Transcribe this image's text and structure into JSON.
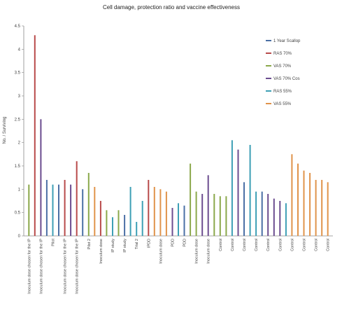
{
  "chart_data": {
    "type": "bar",
    "title": "Cell damage, protection ratio and vaccine effectiveness",
    "ylabel": "No. / Surviving",
    "ylim": [
      0,
      4.5
    ],
    "yticks": [
      "0",
      "0.5",
      "1",
      "1.5",
      "2",
      "2.5",
      "3",
      "3.5",
      "4",
      "4.5"
    ],
    "grid": false,
    "legend_position": "top-right",
    "series": [
      {
        "name": "1 Year Scallop",
        "color": "#4a6fa5"
      },
      {
        "name": "RAS 70%",
        "color": "#b84a4a"
      },
      {
        "name": "VAS 70%",
        "color": "#8aa84a"
      },
      {
        "name": "VAS 70% Cos",
        "color": "#6b4c8f"
      },
      {
        "name": "RAS 55%",
        "color": "#3d9fb5"
      },
      {
        "name": "VAS 55%",
        "color": "#e0934a"
      }
    ],
    "bars": [
      {
        "category": "Inoculum dose chosen for the IP",
        "series": 2,
        "value": 1.1
      },
      {
        "category": "Inoculum dose chosen for the IP",
        "series": 1,
        "value": 4.3
      },
      {
        "category": "Inoculum dose chosen for the IP",
        "series": 3,
        "value": 2.5
      },
      {
        "category": "Pilot",
        "series": 0,
        "value": 1.2
      },
      {
        "category": "Pilot",
        "series": 4,
        "value": 1.1
      },
      {
        "category": "Inoculum dose chosen for the IP",
        "series": 0,
        "value": 1.1
      },
      {
        "category": "Inoculum dose chosen for the IP",
        "series": 1,
        "value": 1.2
      },
      {
        "category": "Inoculum dose chosen for the IP",
        "series": 3,
        "value": 1.1
      },
      {
        "category": "Inoculum dose chosen for the IP",
        "series": 1,
        "value": 1.6
      },
      {
        "category": "Pilot 2",
        "series": 0,
        "value": 1.0
      },
      {
        "category": "Pilot 2",
        "series": 2,
        "value": 1.35
      },
      {
        "category": "Inoculum dose",
        "series": 5,
        "value": 1.05
      },
      {
        "category": "Inoculum dose",
        "series": 1,
        "value": 0.75
      },
      {
        "category": "Inoculum dose",
        "series": 2,
        "value": 0.55
      },
      {
        "category": "IP study",
        "series": 4,
        "value": 0.4
      },
      {
        "category": "IP study",
        "series": 2,
        "value": 0.55
      },
      {
        "category": "IP study",
        "series": 0,
        "value": 0.45
      },
      {
        "category": "IP study",
        "series": 4,
        "value": 1.05
      },
      {
        "category": "Trial 2",
        "series": 4,
        "value": 0.3
      },
      {
        "category": "Trial 2",
        "series": 4,
        "value": 0.75
      },
      {
        "category": "IPDD",
        "series": 1,
        "value": 1.2
      },
      {
        "category": "Inoculum dose",
        "series": 5,
        "value": 1.05
      },
      {
        "category": "Inoculum dose",
        "series": 5,
        "value": 1.0
      },
      {
        "category": "Inoculum dose",
        "series": 5,
        "value": 0.95
      },
      {
        "category": "PDD",
        "series": 3,
        "value": 0.6
      },
      {
        "category": "PDD",
        "series": 4,
        "value": 0.7
      },
      {
        "category": "PDD",
        "series": 0,
        "value": 0.65
      },
      {
        "category": "Inoculum dose",
        "series": 2,
        "value": 1.55
      },
      {
        "category": "Inoculum dose",
        "series": 2,
        "value": 0.95
      },
      {
        "category": "Inoculum dose",
        "series": 3,
        "value": 0.9
      },
      {
        "category": "Inoculum dose",
        "series": 3,
        "value": 1.3
      },
      {
        "category": "Inoculum dose",
        "series": 2,
        "value": 0.9
      },
      {
        "category": "Control",
        "series": 2,
        "value": 0.85
      },
      {
        "category": "Control",
        "series": 2,
        "value": 0.85
      },
      {
        "category": "Control",
        "series": 4,
        "value": 2.05
      },
      {
        "category": "Control",
        "series": 3,
        "value": 1.85
      },
      {
        "category": "Control",
        "series": 0,
        "value": 1.15
      },
      {
        "category": "Control",
        "series": 4,
        "value": 1.95
      },
      {
        "category": "Control",
        "series": 4,
        "value": 0.95
      },
      {
        "category": "Control",
        "series": 0,
        "value": 0.95
      },
      {
        "category": "Control",
        "series": 3,
        "value": 0.9
      },
      {
        "category": "Control",
        "series": 3,
        "value": 0.8
      },
      {
        "category": "Control",
        "series": 3,
        "value": 0.75
      },
      {
        "category": "Control",
        "series": 4,
        "value": 0.7
      },
      {
        "category": "Control",
        "series": 5,
        "value": 1.75
      },
      {
        "category": "Control",
        "series": 5,
        "value": 1.55
      },
      {
        "category": "Control",
        "series": 5,
        "value": 1.4
      },
      {
        "category": "Control",
        "series": 5,
        "value": 1.35
      },
      {
        "category": "Control",
        "series": 5,
        "value": 1.2
      },
      {
        "category": "Control",
        "series": 5,
        "value": 1.2
      },
      {
        "category": "Control",
        "series": 5,
        "value": 1.15
      }
    ],
    "legend": [
      "1 Year Scallop",
      "RAS 70%",
      "VAS 70%",
      "VAS 70% Cos",
      "RAS 55%",
      "VAS 55%"
    ]
  }
}
